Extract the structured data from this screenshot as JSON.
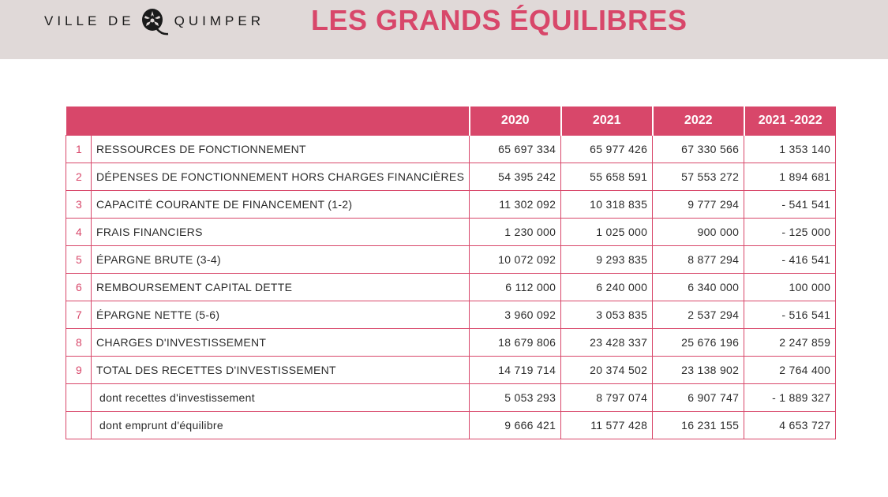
{
  "header": {
    "logo_left": "VILLE DE",
    "logo_right": "QUIMPER",
    "title": "LES GRANDS ÉQUILIBRES"
  },
  "table": {
    "columns": [
      "2020",
      "2021",
      "2022",
      "2021 -2022"
    ],
    "rows": [
      {
        "num": "1",
        "label": "RESSOURCES DE FONCTIONNEMENT",
        "values": [
          "65 697 334",
          "65 977 426",
          "67 330 566",
          "1 353 140"
        ]
      },
      {
        "num": "2",
        "label": "DÉPENSES DE FONCTIONNEMENT HORS CHARGES FINANCIÈRES",
        "values": [
          "54 395 242",
          "55 658 591",
          "57 553 272",
          "1 894 681"
        ]
      },
      {
        "num": "3",
        "label": "CAPACITÉ COURANTE DE FINANCEMENT (1-2)",
        "values": [
          "11 302 092",
          "10 318 835",
          "9 777 294",
          "- 541 541"
        ]
      },
      {
        "num": "4",
        "label": "FRAIS FINANCIERS",
        "values": [
          "1 230 000",
          "1 025 000",
          "900 000",
          "- 125 000"
        ]
      },
      {
        "num": "5",
        "label": "ÉPARGNE BRUTE (3-4)",
        "values": [
          "10 072 092",
          "9 293 835",
          "8 877 294",
          "- 416 541"
        ]
      },
      {
        "num": "6",
        "label": "REMBOURSEMENT CAPITAL DETTE",
        "values": [
          "6 112 000",
          "6 240 000",
          "6 340 000",
          "100 000"
        ]
      },
      {
        "num": "7",
        "label": "ÉPARGNE NETTE (5-6)",
        "values": [
          "3 960 092",
          "3 053 835",
          "2 537 294",
          "- 516 541"
        ]
      },
      {
        "num": "8",
        "label": "CHARGES D'INVESTISSEMENT",
        "values": [
          "18 679 806",
          "23 428 337",
          "25 676 196",
          "2 247 859"
        ]
      },
      {
        "num": "9",
        "label": "TOTAL DES RECETTES D'INVESTISSEMENT",
        "values": [
          "14 719 714",
          "20 374 502",
          "23 138 902",
          "2 764 400"
        ]
      },
      {
        "num": "",
        "label": "dont recettes d'investissement",
        "sub": true,
        "values": [
          "5 053 293",
          "8 797 074",
          "6 907 747",
          "- 1 889 327"
        ]
      },
      {
        "num": "",
        "label": "dont emprunt d'équilibre",
        "sub": true,
        "values": [
          "9 666 421",
          "11 577 428",
          "16 231 155",
          "4 653 727"
        ]
      }
    ]
  },
  "colors": {
    "accent": "#d8476a",
    "header_bg": "#e0d9d8"
  }
}
